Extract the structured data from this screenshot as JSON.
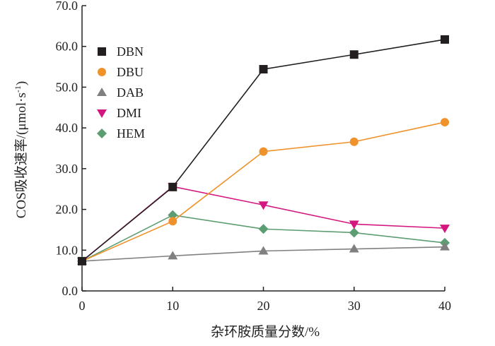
{
  "chart_data": {
    "type": "line",
    "title": "",
    "xlabel": "杂环胺质量分数/%",
    "ylabel": "COS吸收速率/(μmol·s⁻¹)",
    "ylabel_parts": {
      "main": "COS吸收速率/(μmol·s",
      "sup": "-1",
      "close": ")"
    },
    "x": [
      0,
      10,
      20,
      30,
      40
    ],
    "xlim": [
      0,
      40
    ],
    "ylim": [
      0,
      70
    ],
    "x_ticks": [
      "0",
      "10",
      "20",
      "30",
      "40"
    ],
    "y_ticks": [
      "0.0",
      "10.0",
      "20.0",
      "30.0",
      "40.0",
      "50.0",
      "60.0",
      "70.0"
    ],
    "grid": false,
    "legend_position": "top-left",
    "series": [
      {
        "name": "DBN",
        "values": [
          7.3,
          25.5,
          54.4,
          58.0,
          61.7
        ],
        "color": "#231f20",
        "marker": "square"
      },
      {
        "name": "DBU",
        "values": [
          7.3,
          17.1,
          34.2,
          36.6,
          41.4
        ],
        "color": "#f0922b",
        "marker": "circle"
      },
      {
        "name": "DAB",
        "values": [
          7.3,
          8.6,
          9.8,
          10.3,
          10.8
        ],
        "color": "#808080",
        "marker": "triangle-up"
      },
      {
        "name": "DMI",
        "values": [
          7.3,
          25.6,
          21.1,
          16.4,
          15.4
        ],
        "color": "#d4177f",
        "marker": "triangle-down"
      },
      {
        "name": "HEM",
        "values": [
          7.3,
          18.6,
          15.2,
          14.3,
          11.8
        ],
        "color": "#5d9d72",
        "marker": "diamond"
      }
    ]
  }
}
